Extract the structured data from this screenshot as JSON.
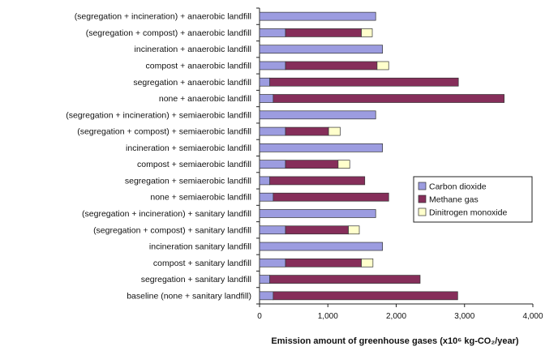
{
  "chart_data": {
    "type": "bar",
    "orientation": "horizontal",
    "stacked": true,
    "categories": [
      "(segregation + incineration) + anaerobic landfill",
      "(segregation + compost) + anaerobic landfill",
      "incineration + anaerobic landfill",
      "compost + anaerobic landfill",
      "segregation + anaerobic landfill",
      "none + anaerobic landfill",
      "(segregation + incineration) + semiaerobic landfill",
      "(segregation + compost) + semiaerobic landfill",
      "incineration + semiaerobic landfill",
      "compost + semiaerobic landfill",
      "segregation + semiaerobic landfill",
      "none + semiaerobic landfill",
      "(segregation + incineration) + sanitary landfill",
      "(segregation + compost) + sanitary landfill",
      "incineration sanitary landfill",
      "compost + sanitary landfill",
      "segregation + sanitary landfill",
      "baseline (none + sanitary landfill)"
    ],
    "series": [
      {
        "name": "Carbon dioxide",
        "color": "#9c9ce0",
        "values": [
          1700,
          380,
          1800,
          380,
          150,
          200,
          1700,
          380,
          1800,
          380,
          150,
          200,
          1700,
          380,
          1800,
          380,
          150,
          200
        ]
      },
      {
        "name": "Methane gas",
        "color": "#862e5a",
        "values": [
          0,
          1110,
          0,
          1340,
          2760,
          3380,
          0,
          630,
          0,
          770,
          1390,
          1690,
          0,
          920,
          0,
          1110,
          2200,
          2700
        ]
      },
      {
        "name": "Dinitrogen monoxide",
        "color": "#ffffcc",
        "values": [
          0,
          160,
          0,
          170,
          0,
          0,
          0,
          170,
          0,
          170,
          0,
          0,
          0,
          160,
          0,
          170,
          0,
          0
        ]
      }
    ],
    "xlim": [
      0,
      4000
    ],
    "x_ticks": [
      "0",
      "1,000",
      "2,000",
      "3,000",
      "4,000"
    ],
    "xlabel": "Emission amount of greenhouse gases  (x10⁶ kg-CO₂/year)",
    "legend_position": "right",
    "grid": false
  }
}
